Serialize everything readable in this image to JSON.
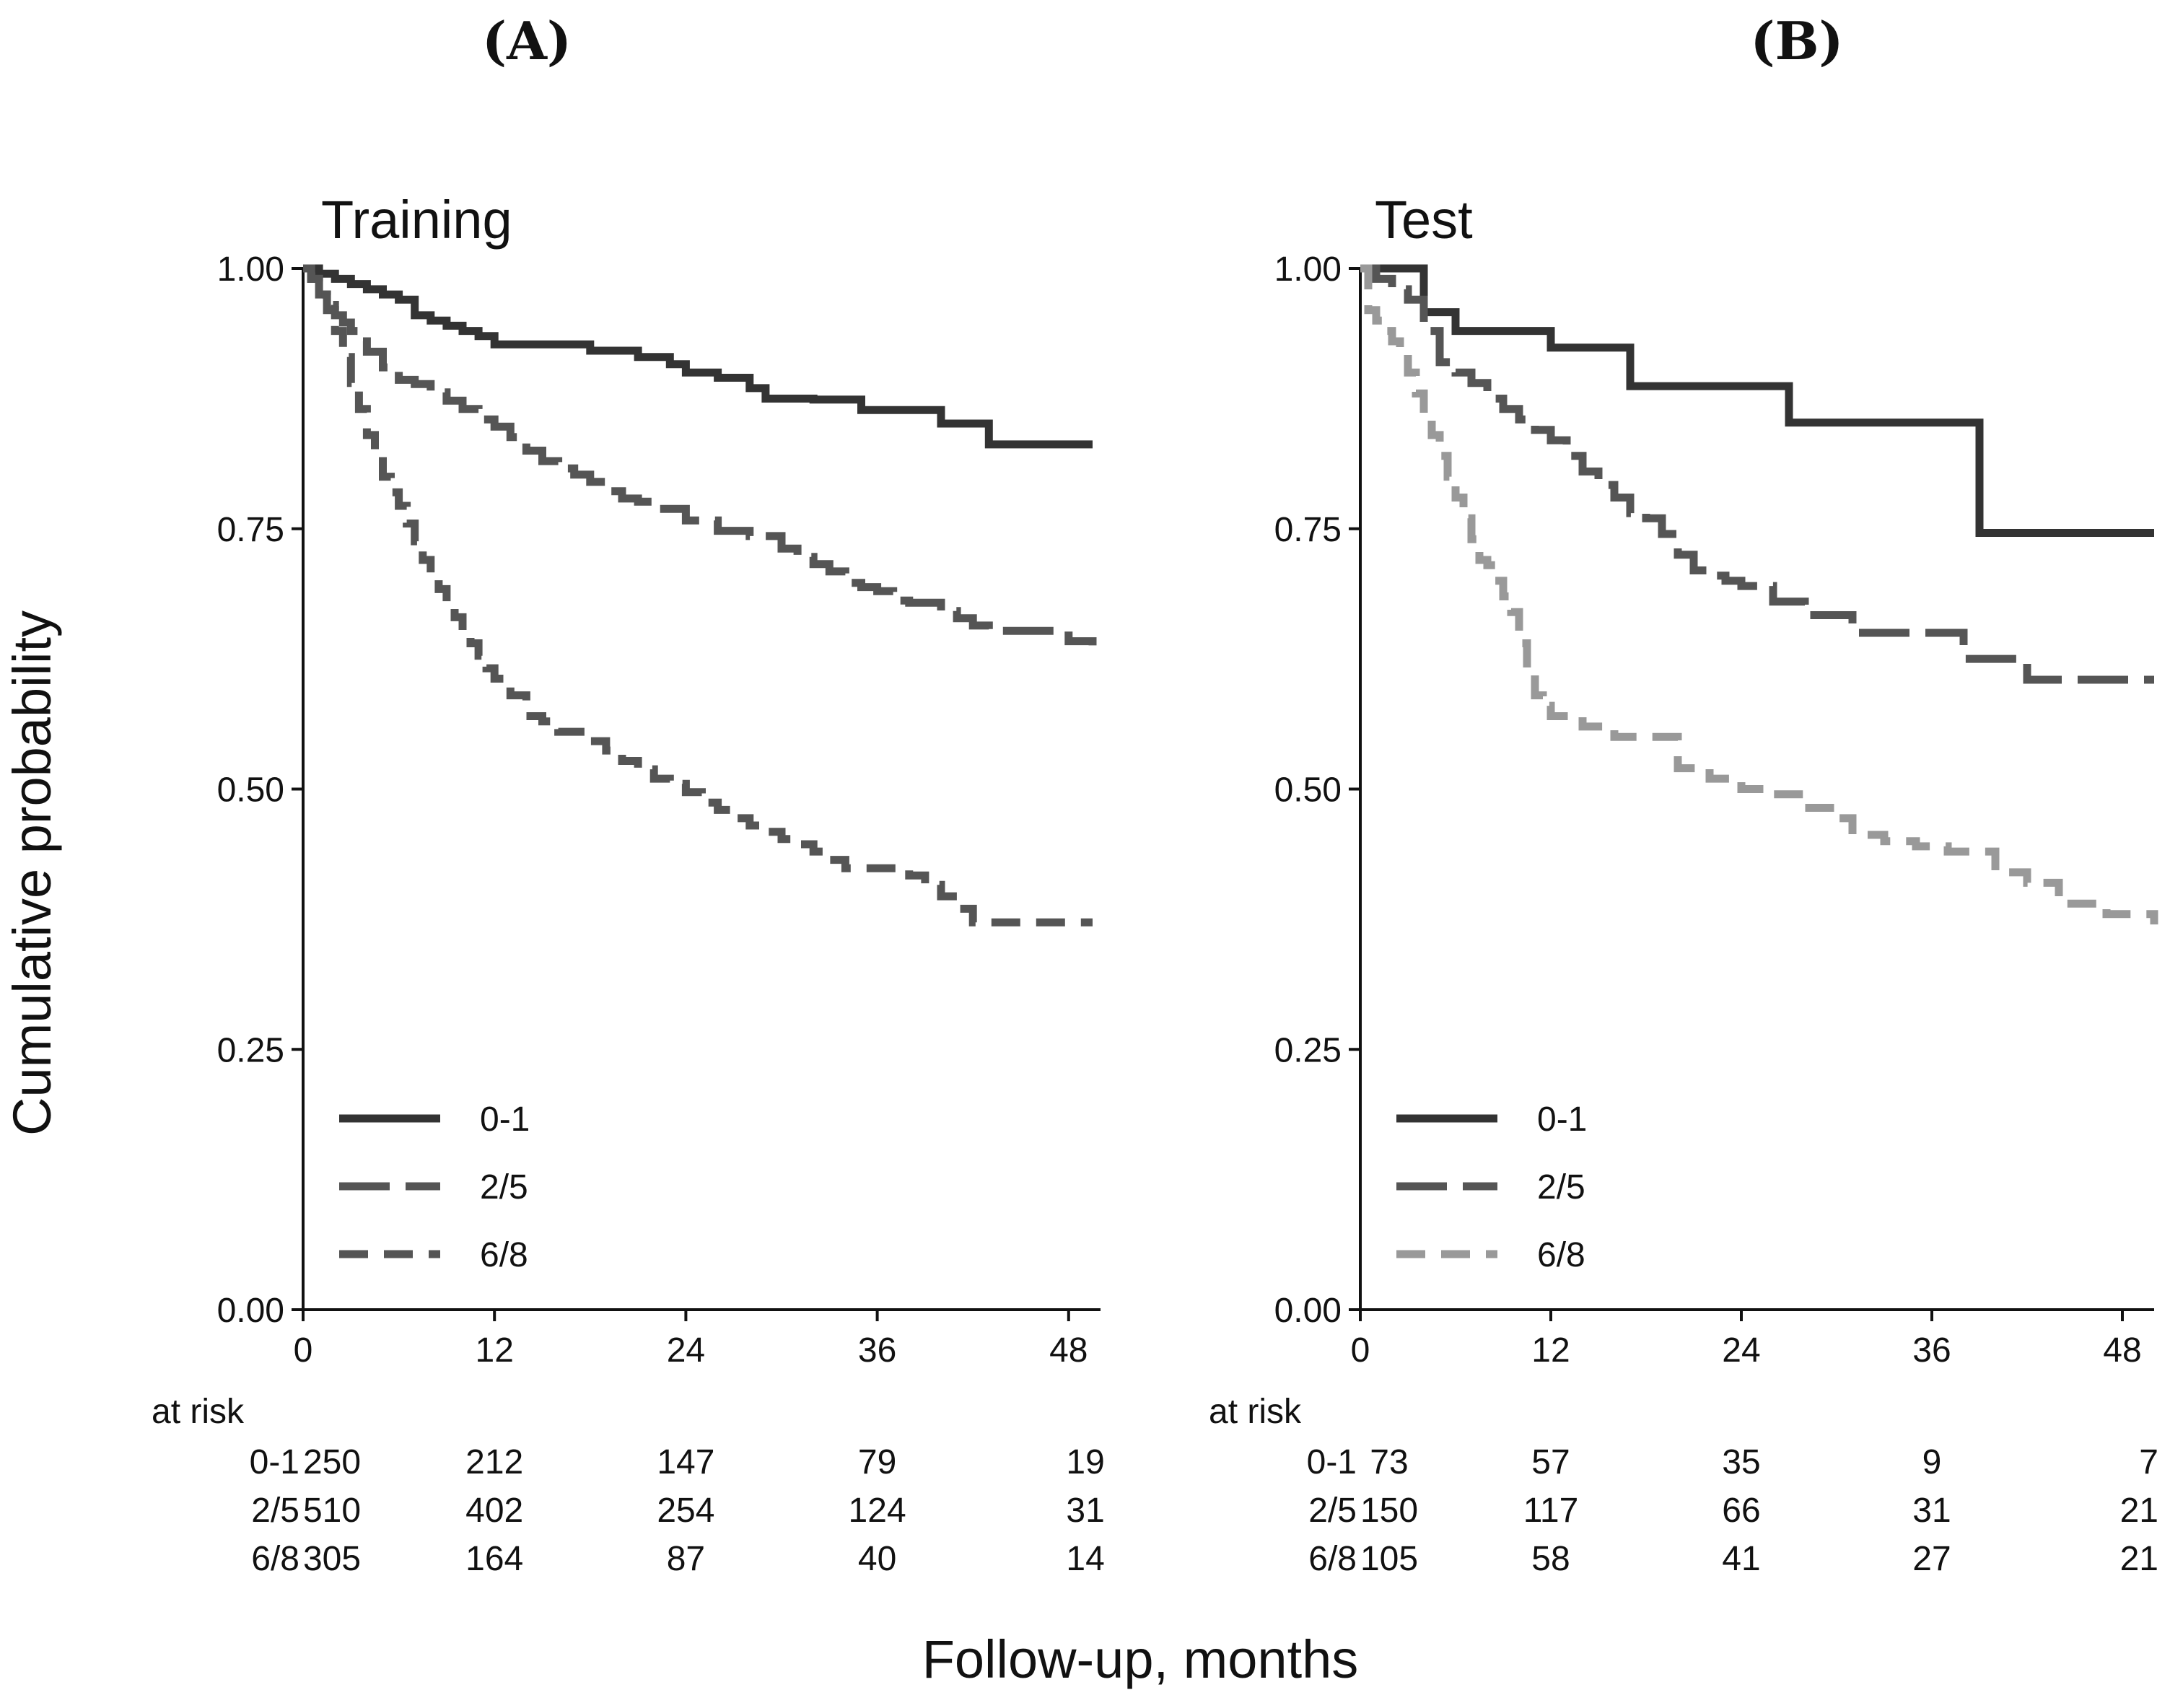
{
  "chart_data": [
    {
      "type": "line",
      "subtype": "kaplan-meier step",
      "panel_label": "(A)",
      "title": "Training",
      "xlabel": "Follow-up, months",
      "ylabel": "Cumulative probability",
      "xlim": [
        0,
        50
      ],
      "ylim": [
        0,
        1
      ],
      "xticks": [
        0,
        12,
        24,
        36,
        48
      ],
      "yticks": [
        "0.00",
        "0.25",
        "0.50",
        "0.75",
        "1.00"
      ],
      "legend_position": "bottom-left",
      "series": [
        {
          "name": "0-1",
          "color": "#333333",
          "dash": "solid",
          "x": [
            0,
            1,
            2,
            3,
            4,
            5,
            6,
            7,
            8,
            9,
            10,
            11,
            12,
            18,
            21,
            23,
            24,
            26,
            28,
            29,
            32,
            35,
            40,
            43,
            49.5
          ],
          "y": [
            1.0,
            0.995,
            0.99,
            0.985,
            0.98,
            0.975,
            0.97,
            0.955,
            0.95,
            0.945,
            0.94,
            0.935,
            0.927,
            0.921,
            0.915,
            0.908,
            0.9,
            0.895,
            0.885,
            0.875,
            0.874,
            0.864,
            0.851,
            0.831,
            0.831
          ]
        },
        {
          "name": "2/5",
          "color": "#555555",
          "dash": "long-dash",
          "x": [
            0,
            0.5,
            1,
            1.5,
            2,
            2.5,
            3,
            3.5,
            4,
            5,
            6,
            7,
            8,
            9,
            10,
            11,
            12,
            13,
            14,
            15,
            16,
            17,
            18,
            19,
            20,
            21,
            22,
            24,
            26,
            28,
            30,
            31,
            32,
            33,
            34,
            35,
            36,
            37,
            38,
            40,
            41,
            42,
            43,
            46,
            48,
            49.5
          ],
          "y": [
            1.0,
            0.99,
            0.975,
            0.965,
            0.955,
            0.948,
            0.94,
            0.93,
            0.92,
            0.905,
            0.893,
            0.889,
            0.881,
            0.873,
            0.865,
            0.855,
            0.848,
            0.838,
            0.825,
            0.815,
            0.808,
            0.802,
            0.795,
            0.786,
            0.779,
            0.776,
            0.769,
            0.758,
            0.748,
            0.743,
            0.731,
            0.723,
            0.716,
            0.709,
            0.698,
            0.694,
            0.69,
            0.681,
            0.679,
            0.671,
            0.664,
            0.657,
            0.652,
            0.652,
            0.642,
            0.638
          ]
        },
        {
          "name": "6/8",
          "color": "#555555",
          "dash": "dash",
          "x": [
            0,
            0.5,
            1,
            1.5,
            2,
            2.5,
            3,
            3.5,
            4,
            4.5,
            5,
            5.5,
            6,
            6.5,
            7,
            7.5,
            8,
            8.5,
            9,
            9.5,
            10,
            10.5,
            11,
            11.5,
            12,
            13,
            14,
            15,
            16,
            18,
            19,
            20,
            21,
            22,
            23,
            24,
            25,
            26,
            27,
            28,
            29,
            30,
            31,
            32,
            33,
            34,
            37,
            38,
            39,
            40,
            41,
            42,
            49.5
          ],
          "y": [
            1.0,
            0.99,
            0.975,
            0.96,
            0.94,
            0.915,
            0.89,
            0.865,
            0.84,
            0.82,
            0.8,
            0.785,
            0.772,
            0.755,
            0.738,
            0.72,
            0.706,
            0.692,
            0.68,
            0.665,
            0.652,
            0.64,
            0.628,
            0.616,
            0.606,
            0.59,
            0.57,
            0.565,
            0.555,
            0.546,
            0.537,
            0.527,
            0.519,
            0.51,
            0.505,
            0.497,
            0.487,
            0.48,
            0.472,
            0.465,
            0.459,
            0.452,
            0.447,
            0.44,
            0.432,
            0.424,
            0.424,
            0.417,
            0.408,
            0.397,
            0.385,
            0.372,
            0.372
          ]
        }
      ],
      "at_risk": {
        "header": "at risk",
        "rows": [
          {
            "label": "0-1",
            "values": [
              "250",
              "212",
              "147",
              "79",
              "19"
            ]
          },
          {
            "label": "2/5",
            "values": [
              "510",
              "402",
              "254",
              "124",
              "31"
            ]
          },
          {
            "label": "6/8",
            "values": [
              "305",
              "164",
              "87",
              "40",
              "14"
            ]
          }
        ]
      }
    },
    {
      "type": "line",
      "subtype": "kaplan-meier step",
      "panel_label": "(B)",
      "title": "Test",
      "xlabel": "Follow-up, months",
      "ylabel": "Cumulative probability",
      "xlim": [
        0,
        50
      ],
      "ylim": [
        0,
        1
      ],
      "xticks": [
        0,
        12,
        24,
        36,
        48
      ],
      "yticks": [
        "0.00",
        "0.25",
        "0.50",
        "0.75",
        "1.00"
      ],
      "legend_position": "bottom-left",
      "series": [
        {
          "name": "0-1",
          "color": "#333333",
          "dash": "solid",
          "x": [
            0,
            4,
            6,
            12,
            17,
            27,
            39,
            50
          ],
          "y": [
            1.0,
            0.958,
            0.94,
            0.924,
            0.887,
            0.852,
            0.746,
            0.746
          ]
        },
        {
          "name": "2/5",
          "color": "#555555",
          "dash": "long-dash",
          "x": [
            0,
            1,
            2,
            3,
            4,
            5,
            6,
            7,
            8,
            9,
            10,
            11,
            12,
            13,
            14,
            15,
            16,
            17,
            18,
            19,
            20,
            21,
            22,
            23,
            24,
            26,
            28,
            31,
            33,
            38,
            42,
            50
          ],
          "y": [
            1.0,
            0.99,
            0.98,
            0.97,
            0.94,
            0.91,
            0.9,
            0.89,
            0.875,
            0.865,
            0.855,
            0.845,
            0.835,
            0.82,
            0.805,
            0.792,
            0.78,
            0.765,
            0.76,
            0.745,
            0.725,
            0.71,
            0.705,
            0.7,
            0.695,
            0.68,
            0.667,
            0.65,
            0.65,
            0.625,
            0.605,
            0.605
          ]
        },
        {
          "name": "6/8",
          "color": "#999999",
          "dash": "dash",
          "x": [
            0,
            0.5,
            1,
            1.5,
            2,
            2.5,
            3,
            3.5,
            4,
            4.5,
            5,
            5.5,
            6,
            6.5,
            7,
            7.5,
            8,
            8.5,
            9,
            9.5,
            10,
            10.5,
            11,
            11.5,
            12,
            14,
            16,
            20,
            22,
            24,
            26,
            28,
            30,
            31,
            33,
            35,
            37,
            40,
            42,
            44,
            46,
            47,
            50
          ],
          "y": [
            1.0,
            0.96,
            0.95,
            0.94,
            0.93,
            0.92,
            0.9,
            0.88,
            0.86,
            0.84,
            0.82,
            0.8,
            0.78,
            0.76,
            0.74,
            0.72,
            0.715,
            0.7,
            0.685,
            0.67,
            0.64,
            0.61,
            0.59,
            0.58,
            0.57,
            0.56,
            0.55,
            0.52,
            0.51,
            0.5,
            0.495,
            0.482,
            0.472,
            0.456,
            0.45,
            0.445,
            0.44,
            0.42,
            0.41,
            0.39,
            0.39,
            0.38,
            0.37
          ]
        }
      ],
      "at_risk": {
        "header": "at risk",
        "rows": [
          {
            "label": "0-1",
            "values": [
              "73",
              "57",
              "35",
              "9",
              "7"
            ]
          },
          {
            "label": "2/5",
            "values": [
              "150",
              "117",
              "66",
              "31",
              "21"
            ]
          },
          {
            "label": "6/8",
            "values": [
              "105",
              "58",
              "41",
              "27",
              "21"
            ]
          }
        ]
      }
    }
  ],
  "figure": {
    "ylabel": "Cumulative probability",
    "xlabel": "Follow-up, months"
  }
}
